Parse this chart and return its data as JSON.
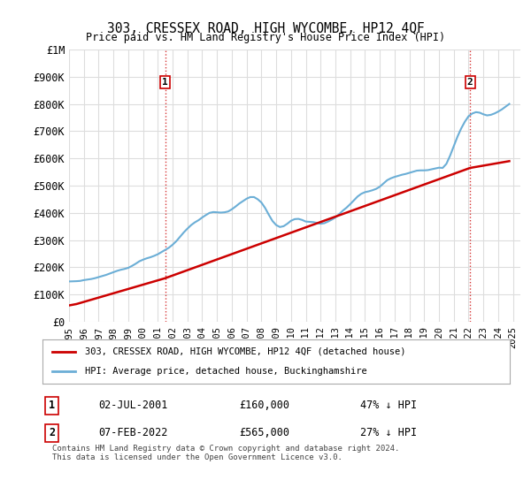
{
  "title": "303, CRESSEX ROAD, HIGH WYCOMBE, HP12 4QF",
  "subtitle": "Price paid vs. HM Land Registry's House Price Index (HPI)",
  "xlabel": "",
  "ylabel": "",
  "ylim": [
    0,
    1000000
  ],
  "yticks": [
    0,
    100000,
    200000,
    300000,
    400000,
    500000,
    600000,
    700000,
    800000,
    900000,
    1000000
  ],
  "ytick_labels": [
    "£0",
    "£100K",
    "£200K",
    "£300K",
    "£400K",
    "£500K",
    "£600K",
    "£700K",
    "£800K",
    "£900K",
    "£1M"
  ],
  "xlim_start": 1995.0,
  "xlim_end": 2025.5,
  "xtick_years": [
    1995,
    1996,
    1997,
    1998,
    1999,
    2000,
    2001,
    2002,
    2003,
    2004,
    2005,
    2006,
    2007,
    2008,
    2009,
    2010,
    2011,
    2012,
    2013,
    2014,
    2015,
    2016,
    2017,
    2018,
    2019,
    2020,
    2021,
    2022,
    2023,
    2024,
    2025
  ],
  "hpi_color": "#6baed6",
  "price_color": "#cc0000",
  "vline_color": "#cc0000",
  "vline_style": ":",
  "background_color": "#ffffff",
  "grid_color": "#dddddd",
  "legend_label_red": "303, CRESSEX ROAD, HIGH WYCOMBE, HP12 4QF (detached house)",
  "legend_label_blue": "HPI: Average price, detached house, Buckinghamshire",
  "annotation1_num": "1",
  "annotation1_date": "02-JUL-2001",
  "annotation1_price": "£160,000",
  "annotation1_hpi": "47% ↓ HPI",
  "annotation1_year": 2001.5,
  "annotation1_price_val": 160000,
  "annotation2_num": "2",
  "annotation2_date": "07-FEB-2022",
  "annotation2_price": "£565,000",
  "annotation2_hpi": "27% ↓ HPI",
  "annotation2_year": 2022.1,
  "annotation2_price_val": 565000,
  "footnote": "Contains HM Land Registry data © Crown copyright and database right 2024.\nThis data is licensed under the Open Government Licence v3.0.",
  "hpi_data_x": [
    1995.0,
    1995.25,
    1995.5,
    1995.75,
    1996.0,
    1996.25,
    1996.5,
    1996.75,
    1997.0,
    1997.25,
    1997.5,
    1997.75,
    1998.0,
    1998.25,
    1998.5,
    1998.75,
    1999.0,
    1999.25,
    1999.5,
    1999.75,
    2000.0,
    2000.25,
    2000.5,
    2000.75,
    2001.0,
    2001.25,
    2001.5,
    2001.75,
    2002.0,
    2002.25,
    2002.5,
    2002.75,
    2003.0,
    2003.25,
    2003.5,
    2003.75,
    2004.0,
    2004.25,
    2004.5,
    2004.75,
    2005.0,
    2005.25,
    2005.5,
    2005.75,
    2006.0,
    2006.25,
    2006.5,
    2006.75,
    2007.0,
    2007.25,
    2007.5,
    2007.75,
    2008.0,
    2008.25,
    2008.5,
    2008.75,
    2009.0,
    2009.25,
    2009.5,
    2009.75,
    2010.0,
    2010.25,
    2010.5,
    2010.75,
    2011.0,
    2011.25,
    2011.5,
    2011.75,
    2012.0,
    2012.25,
    2012.5,
    2012.75,
    2013.0,
    2013.25,
    2013.5,
    2013.75,
    2014.0,
    2014.25,
    2014.5,
    2014.75,
    2015.0,
    2015.25,
    2015.5,
    2015.75,
    2016.0,
    2016.25,
    2016.5,
    2016.75,
    2017.0,
    2017.25,
    2017.5,
    2017.75,
    2018.0,
    2018.25,
    2018.5,
    2018.75,
    2019.0,
    2019.25,
    2019.5,
    2019.75,
    2020.0,
    2020.25,
    2020.5,
    2020.75,
    2021.0,
    2021.25,
    2021.5,
    2021.75,
    2022.0,
    2022.25,
    2022.5,
    2022.75,
    2023.0,
    2023.25,
    2023.5,
    2023.75,
    2024.0,
    2024.25,
    2024.5,
    2024.75
  ],
  "hpi_data_y": [
    148000,
    148500,
    149000,
    150000,
    153000,
    155000,
    157000,
    160000,
    164000,
    168000,
    172000,
    177000,
    182000,
    187000,
    191000,
    194000,
    198000,
    205000,
    213000,
    222000,
    228000,
    233000,
    237000,
    242000,
    248000,
    256000,
    264000,
    272000,
    283000,
    296000,
    312000,
    328000,
    342000,
    355000,
    365000,
    373000,
    383000,
    392000,
    400000,
    403000,
    402000,
    401000,
    402000,
    405000,
    413000,
    423000,
    434000,
    443000,
    452000,
    458000,
    458000,
    450000,
    438000,
    418000,
    393000,
    370000,
    355000,
    348000,
    351000,
    360000,
    371000,
    377000,
    378000,
    374000,
    368000,
    367000,
    366000,
    363000,
    360000,
    362000,
    368000,
    375000,
    383000,
    395000,
    408000,
    419000,
    432000,
    446000,
    460000,
    470000,
    476000,
    479000,
    483000,
    488000,
    496000,
    508000,
    520000,
    527000,
    532000,
    536000,
    540000,
    543000,
    547000,
    551000,
    555000,
    556000,
    556000,
    557000,
    560000,
    563000,
    566000,
    565000,
    580000,
    610000,
    645000,
    680000,
    710000,
    735000,
    755000,
    765000,
    770000,
    768000,
    762000,
    758000,
    760000,
    765000,
    772000,
    780000,
    790000,
    800000
  ],
  "price_data_x": [
    1995.5,
    2001.5,
    2022.1
  ],
  "price_data_y": [
    65000,
    160000,
    565000
  ],
  "price_line_x": [
    1995.0,
    1995.5,
    2001.5,
    2022.1,
    2024.75
  ],
  "price_line_y": [
    60000,
    65000,
    160000,
    565000,
    590000
  ]
}
